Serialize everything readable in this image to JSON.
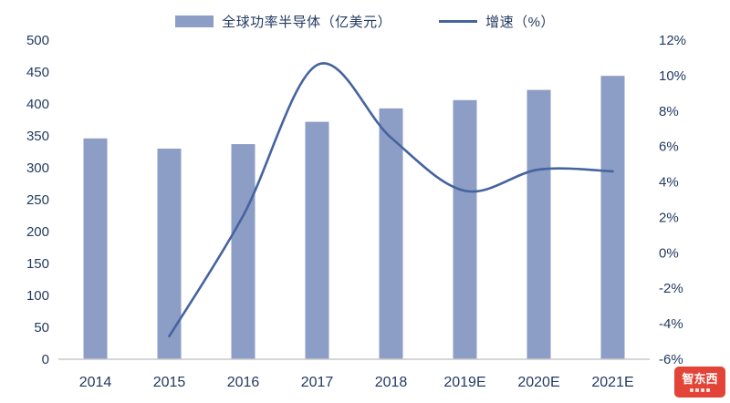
{
  "legend": {
    "bar_label": "全球功率半导体（亿美元）",
    "line_label": "增速（%）"
  },
  "watermark": {
    "text": "智东西"
  },
  "chart_data": {
    "type": "bar+line combo",
    "title": "",
    "categories": [
      "2014",
      "2015",
      "2016",
      "2017",
      "2018",
      "2019E",
      "2020E",
      "2021E"
    ],
    "series": [
      {
        "name": "全球功率半导体（亿美元）",
        "type": "bar",
        "axis": "left",
        "values": [
          346,
          330,
          337,
          372,
          393,
          406,
          422,
          444
        ]
      },
      {
        "name": "增速（%）",
        "type": "line",
        "axis": "right",
        "values": [
          null,
          -4.7,
          2.1,
          10.6,
          6.5,
          3.5,
          4.7,
          4.6
        ]
      }
    ],
    "left_axis": {
      "min": 0,
      "max": 500,
      "step": 50,
      "ticks": [
        "0",
        "50",
        "100",
        "150",
        "200",
        "250",
        "300",
        "350",
        "400",
        "450",
        "500"
      ]
    },
    "right_axis": {
      "min": -6,
      "max": 12,
      "step": 2,
      "suffix": "%",
      "ticks": [
        "-6%",
        "-4%",
        "-2%",
        "0%",
        "2%",
        "4%",
        "6%",
        "8%",
        "10%",
        "12%"
      ]
    },
    "legend_position": "top",
    "grid": false,
    "colors": {
      "bar": "#8c9dc6",
      "line": "#45639e",
      "axis_text": "#233a60",
      "axis_line": "#c9c9c9"
    }
  }
}
